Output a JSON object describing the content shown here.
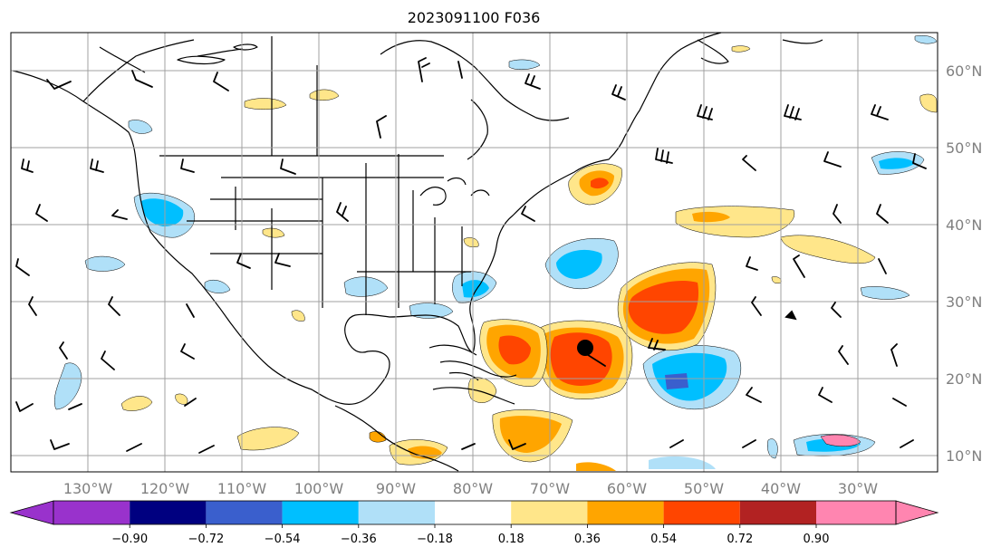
{
  "title": "2023091100 F036",
  "lat_labels": [
    "60°N",
    "50°N",
    "40°N",
    "30°N",
    "20°N",
    "10°N"
  ],
  "lon_labels": [
    "130°W",
    "120°W",
    "110°W",
    "100°W",
    "90°W",
    "80°W",
    "70°W",
    "60°W",
    "50°W",
    "40°W",
    "30°W"
  ],
  "colorbar": {
    "tick_labels": [
      "−0.90",
      "−0.72",
      "−0.54",
      "−0.36",
      "−0.18",
      "0.18",
      "0.36",
      "0.54",
      "0.72",
      "0.90"
    ],
    "colors": [
      "#9932cc",
      "#000080",
      "#3a5fcd",
      "#00bfff",
      "#b0e0f8",
      "#ffffff",
      "#ffe68a",
      "#ffa500",
      "#ff4500",
      "#b22222",
      "#ff85b0"
    ]
  },
  "map": {
    "extent": {
      "lon_min": -135,
      "lon_max": -23,
      "lat_min": 8,
      "lat_max": 65
    },
    "storm_center": {
      "lon": -65.3,
      "lat": 24
    }
  }
}
